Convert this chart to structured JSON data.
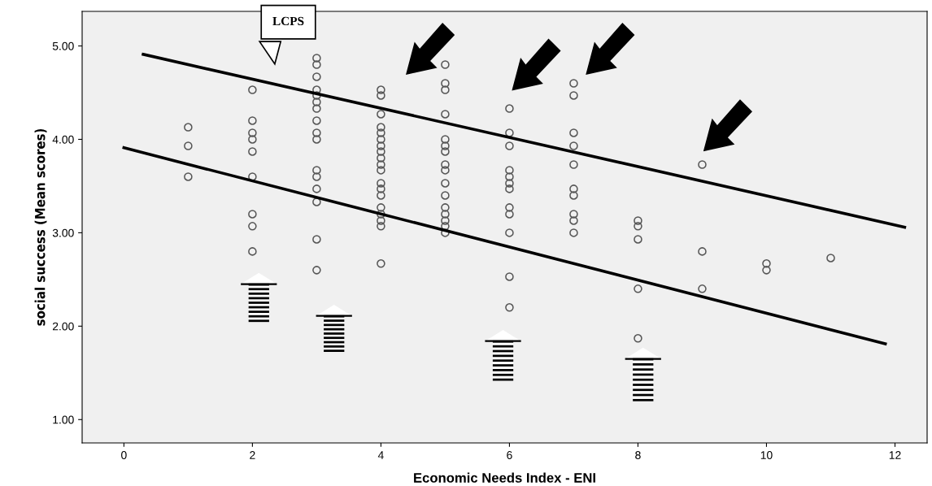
{
  "chart_data": {
    "type": "scatter",
    "xlabel": "Economic Needs Index - ENI",
    "ylabel": "social success (Mean scores)",
    "xlim": [
      -0.65,
      12.5
    ],
    "ylim": [
      0.75,
      5.37
    ],
    "xticks": [
      0,
      2,
      4,
      6,
      8,
      10,
      12
    ],
    "yticks": [
      {
        "value": 1,
        "label": "1.00"
      },
      {
        "value": 2,
        "label": "2.00"
      },
      {
        "value": 3,
        "label": "3.00"
      },
      {
        "value": 4,
        "label": "4.00"
      },
      {
        "value": 5,
        "label": "5.00"
      }
    ],
    "grid": false,
    "legend": false,
    "series": [
      {
        "marker": "circle",
        "color": "#555555",
        "x": [
          1,
          1,
          1,
          2,
          2,
          2,
          2,
          2,
          2,
          2,
          2,
          2,
          3,
          3,
          3,
          3,
          3,
          3,
          3,
          3,
          3,
          3,
          3,
          3,
          3,
          3,
          3,
          3,
          4,
          4,
          4,
          4,
          4,
          4,
          4,
          4,
          4,
          4,
          4,
          4,
          4,
          4,
          4,
          4,
          4,
          4,
          4,
          5,
          5,
          5,
          5,
          5,
          5,
          5,
          5,
          5,
          5,
          5,
          5,
          5,
          5,
          5,
          5,
          6,
          6,
          6,
          6,
          6,
          6,
          6,
          6,
          6,
          6,
          6,
          6,
          7,
          7,
          7,
          7,
          7,
          7,
          7,
          7,
          7,
          7,
          8,
          8,
          8,
          8,
          8,
          9,
          9,
          9,
          10,
          10,
          11
        ],
        "values": [
          4.13,
          3.93,
          3.6,
          4.53,
          4.2,
          4.07,
          4.0,
          3.87,
          3.6,
          3.2,
          3.07,
          2.8,
          4.87,
          4.8,
          4.67,
          4.53,
          4.47,
          4.4,
          4.33,
          4.2,
          4.07,
          4.0,
          3.67,
          3.6,
          3.47,
          3.33,
          2.93,
          2.6,
          4.53,
          4.47,
          4.27,
          4.13,
          4.07,
          4.0,
          3.93,
          3.87,
          3.8,
          3.73,
          3.67,
          3.53,
          3.47,
          3.4,
          3.27,
          3.2,
          3.13,
          3.07,
          2.67,
          4.8,
          4.6,
          4.53,
          4.27,
          4.0,
          3.93,
          3.87,
          3.73,
          3.67,
          3.53,
          3.4,
          3.27,
          3.2,
          3.13,
          3.07,
          3.0,
          4.33,
          4.07,
          3.93,
          3.67,
          3.6,
          3.53,
          3.47,
          3.27,
          3.2,
          3.0,
          2.53,
          2.2,
          4.6,
          4.47,
          4.07,
          3.93,
          3.73,
          3.47,
          3.4,
          3.2,
          3.13,
          3.0,
          3.13,
          3.07,
          2.93,
          2.4,
          1.87,
          3.73,
          2.8,
          2.4,
          2.67,
          2.6,
          2.73
        ]
      },
      {
        "type": "line",
        "marker": "none",
        "color": "#000000",
        "x": [
          0.3,
          12.15
        ],
        "values": [
          4.91,
          3.06
        ]
      },
      {
        "type": "line",
        "marker": "none",
        "color": "#000000",
        "x": [
          0,
          11.85
        ],
        "values": [
          3.91,
          1.81
        ]
      }
    ],
    "annotations": [
      "LCPS"
    ]
  }
}
